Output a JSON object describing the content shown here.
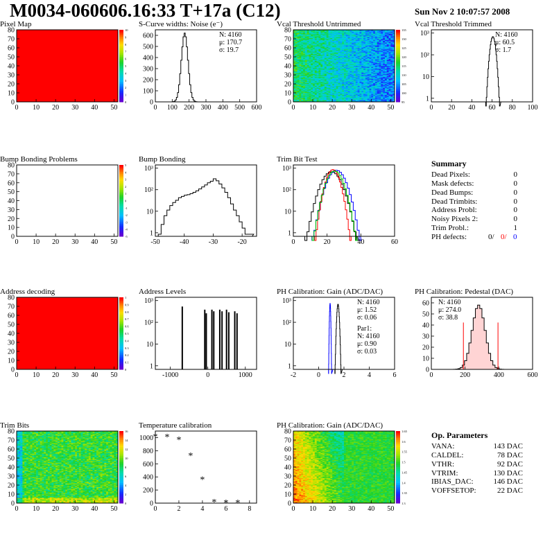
{
  "header": {
    "title": "M0034-060606.16:33 T+17a (C12)",
    "date": "Sun Nov  2 10:07:57 2008"
  },
  "colors": {
    "red": "#ff0000",
    "blue": "#0000ff",
    "green": "#00cc00",
    "black": "#000000"
  },
  "chart_data": [
    {
      "id": "pixel-map",
      "type": "heatmap",
      "title": "Pixel Map",
      "xticks": [
        "0",
        "10",
        "20",
        "30",
        "40",
        "50"
      ],
      "yticks": [
        "0",
        "10",
        "20",
        "30",
        "40",
        "50",
        "60",
        "70",
        "80"
      ],
      "xlim": [
        0,
        52
      ],
      "ylim": [
        0,
        80
      ],
      "fill": "uniform-red",
      "palette_ticks": [
        "10",
        "9",
        "8",
        "7",
        "6",
        "5",
        "4",
        "3",
        "2",
        "1",
        "0"
      ]
    },
    {
      "id": "scurve",
      "type": "histogram",
      "title": "S-Curve widths: Noise (e⁻)",
      "xticks": [
        "0",
        "100",
        "200",
        "300",
        "400",
        "500",
        "600"
      ],
      "xlim": [
        0,
        600
      ],
      "yticks": [
        "0",
        "100",
        "200",
        "300",
        "400",
        "500",
        "600"
      ],
      "ylim": [
        0,
        650
      ],
      "stats": [
        "N: 4160",
        "μ: 170.7",
        "σ: 19.7"
      ],
      "series": [
        {
          "mean": 170.7,
          "sigma": 19.7,
          "peak": 620
        }
      ]
    },
    {
      "id": "vcal-untrimmed",
      "type": "heatmap",
      "title": "Vcal Threshold Untrimmed",
      "xticks": [
        "0",
        "10",
        "20",
        "30",
        "40",
        "50"
      ],
      "yticks": [
        "0",
        "10",
        "20",
        "30",
        "40",
        "50",
        "60",
        "70",
        "80"
      ],
      "xlim": [
        0,
        52
      ],
      "ylim": [
        0,
        80
      ],
      "fill": "gradient-green-to-blue",
      "palette_ticks": [
        "135",
        "130",
        "125",
        "120",
        "115",
        "110",
        "105",
        "100",
        "95"
      ]
    },
    {
      "id": "vcal-trimmed",
      "type": "histogram",
      "title": "Vcal Threshold Trimmed",
      "xticks": [
        "0",
        "20",
        "40",
        "60",
        "80",
        "100"
      ],
      "xlim": [
        0,
        100
      ],
      "yticks": [
        "1",
        "10",
        "10²",
        "10³"
      ],
      "ylog": true,
      "stats": [
        "N: 4160",
        "μ: 60.5",
        "σ:  1.7"
      ],
      "series": [
        {
          "mean": 60.5,
          "sigma": 1.7,
          "peak": 1100
        }
      ]
    },
    {
      "id": "bump-problems",
      "type": "heatmap",
      "title": "Bump Bonding Problems",
      "xticks": [
        "0",
        "10",
        "20",
        "30",
        "40",
        "50"
      ],
      "yticks": [
        "0",
        "10",
        "20",
        "30",
        "40",
        "50",
        "60",
        "70",
        "80"
      ],
      "xlim": [
        0,
        52
      ],
      "ylim": [
        0,
        80
      ],
      "fill": "empty",
      "palette_ticks": [
        "5",
        "4",
        "3",
        "2",
        "1",
        "0",
        "-1",
        "-2",
        "-3",
        "-4",
        "-5"
      ]
    },
    {
      "id": "bump-bonding",
      "type": "histogram",
      "title": "Bump Bonding",
      "xticks": [
        "-50",
        "-40",
        "-30",
        "-20"
      ],
      "xlim": [
        -50,
        -15
      ],
      "yticks": [
        "1",
        "10",
        "10²",
        "10³"
      ],
      "ylog": true,
      "series": [
        {
          "x": [
            -49,
            -48,
            -47,
            -46,
            -45,
            -44,
            -43,
            -42,
            -41,
            -40,
            -39,
            -38,
            -37,
            -36,
            -35,
            -34,
            -33,
            -32,
            -31,
            -30,
            -29,
            -28,
            -27,
            -26,
            -25,
            -24,
            -23,
            -22,
            -21,
            -20,
            -19,
            -18,
            -17
          ],
          "y": [
            1,
            3,
            8,
            15,
            25,
            35,
            45,
            60,
            70,
            80,
            85,
            95,
            110,
            130,
            160,
            200,
            250,
            320,
            380,
            500,
            400,
            280,
            180,
            110,
            60,
            30,
            15,
            8,
            4,
            2,
            1,
            1,
            1
          ]
        }
      ]
    },
    {
      "id": "trim-bit-test",
      "type": "histogram",
      "title": "Trim Bit Test",
      "xticks": [
        "0",
        "20",
        "40",
        "60"
      ],
      "xlim": [
        0,
        60
      ],
      "yticks": [
        "1",
        "10",
        "10²",
        "10³"
      ],
      "ylog": true,
      "series": [
        {
          "color": "#000000",
          "mean": 22,
          "sigma": 3.8,
          "peak": 1100
        },
        {
          "color": "#0000ff",
          "mean": 25,
          "sigma": 3.5,
          "peak": 1300
        },
        {
          "color": "#ff0000",
          "mean": 23,
          "sigma": 2.6,
          "peak": 1400
        },
        {
          "color": "#00cc00",
          "mean": 24,
          "sigma": 3.2,
          "peak": 1200
        }
      ]
    },
    {
      "id": "summary",
      "type": "table",
      "title": "Summary",
      "rows": [
        {
          "label": "Dead Pixels:",
          "value": "0"
        },
        {
          "label": "Mask defects:",
          "value": "0"
        },
        {
          "label": "Dead Bumps:",
          "value": "0"
        },
        {
          "label": "Dead Trimbits:",
          "value": "0"
        },
        {
          "label": "Address Probl:",
          "value": "0"
        },
        {
          "label": "Noisy Pixels 2:",
          "value": "0"
        },
        {
          "label": "Trim Probl.:",
          "value": "1"
        }
      ],
      "ph_defects": {
        "label": "PH defects:",
        "values": [
          "0/",
          "0/",
          "0"
        ]
      }
    },
    {
      "id": "address-decoding",
      "type": "heatmap",
      "title": "Address decoding",
      "xticks": [
        "0",
        "10",
        "20",
        "30",
        "40",
        "50"
      ],
      "yticks": [
        "0",
        "10",
        "20",
        "30",
        "40",
        "50",
        "60",
        "70",
        "80"
      ],
      "xlim": [
        0,
        52
      ],
      "ylim": [
        0,
        80
      ],
      "fill": "uniform-red",
      "palette_ticks": [
        "1",
        "0.9",
        "0.8",
        "0.7",
        "0.6",
        "0.5",
        "0.4",
        "0.3",
        "0.2",
        "0.1",
        "0"
      ]
    },
    {
      "id": "address-levels",
      "type": "histogram",
      "title": "Address Levels",
      "xticks": [
        "-1000",
        "0",
        "1000"
      ],
      "xlim": [
        -1400,
        1300
      ],
      "yticks": [
        "1",
        "10",
        "10²",
        "10³"
      ],
      "ylog": true,
      "series": [
        {
          "x": [
            -700,
            -100,
            -60,
            90,
            140,
            300,
            360,
            480,
            540,
            700,
            760
          ],
          "y": [
            850,
            600,
            400,
            600,
            500,
            600,
            500,
            600,
            450,
            500,
            400
          ]
        }
      ]
    },
    {
      "id": "ph-gain",
      "type": "histogram",
      "title": "PH Calibration: Gain (ADC/DAC)",
      "xticks": [
        "-2",
        "0",
        "2",
        "4",
        "6"
      ],
      "xlim": [
        -2,
        6
      ],
      "yticks": [
        "1",
        "10",
        "10²",
        "10³"
      ],
      "ylog": true,
      "stats": [
        "N: 4160",
        "μ: 1.52",
        "σ: 0.06"
      ],
      "fit": [
        "Par1:",
        "N: 4160",
        "μ: 0.90",
        "σ: 0.03"
      ],
      "series": [
        {
          "color": "#000000",
          "mean": 1.52,
          "sigma": 0.06,
          "peak": 1100
        },
        {
          "color": "#0000ff",
          "mean": 0.9,
          "sigma": 0.03,
          "peak": 1200
        }
      ]
    },
    {
      "id": "ph-pedestal",
      "type": "histogram",
      "title": "PH Calibration: Pedestal (DAC)",
      "xticks": [
        "0",
        "200",
        "400",
        "600"
      ],
      "xlim": [
        0,
        600
      ],
      "yticks": [
        "0",
        "10",
        "20",
        "30",
        "40",
        "50",
        "60"
      ],
      "ylim": [
        0,
        65
      ],
      "stats": [
        "N: 4160",
        "μ: 274.0",
        "σ: 38.8"
      ],
      "series": [
        {
          "mean": 274.0,
          "sigma": 38.8,
          "peak": 58
        }
      ],
      "markers": [
        190,
        395
      ]
    },
    {
      "id": "trim-bits",
      "type": "heatmap",
      "title": "Trim Bits",
      "xticks": [
        "0",
        "10",
        "20",
        "30",
        "40",
        "50"
      ],
      "yticks": [
        "0",
        "10",
        "20",
        "30",
        "40",
        "50",
        "60",
        "70",
        "80"
      ],
      "xlim": [
        0,
        52
      ],
      "ylim": [
        0,
        80
      ],
      "fill": "noisy-green",
      "palette_ticks": [
        "16",
        "14",
        "12",
        "10",
        "8",
        "6",
        "4",
        "2",
        "0"
      ]
    },
    {
      "id": "temperature",
      "type": "scatter",
      "title": "Temperature calibration",
      "xticks": [
        "0",
        "2",
        "4",
        "6",
        "8"
      ],
      "xlim": [
        0,
        8.6
      ],
      "yticks": [
        "0",
        "200",
        "400",
        "600",
        "800",
        "1000"
      ],
      "ylim": [
        0,
        1100
      ],
      "series": [
        {
          "x": [
            0,
            1,
            2,
            3,
            4,
            5,
            6,
            7
          ],
          "y": [
            1020,
            1015,
            975,
            730,
            365,
            20,
            12,
            10
          ]
        }
      ]
    },
    {
      "id": "ph-gain-map",
      "type": "heatmap",
      "title": "PH Calibration: Gain (ADC/DAC)",
      "xticks": [
        "0",
        "10",
        "20",
        "30",
        "40",
        "50"
      ],
      "yticks": [
        "0",
        "10",
        "20",
        "30",
        "40",
        "50",
        "60",
        "70",
        "80"
      ],
      "xlim": [
        0,
        52
      ],
      "ylim": [
        0,
        80
      ],
      "fill": "gradient-red-to-green",
      "palette_ticks": [
        "1.65",
        "1.6",
        "1.55",
        "1.5",
        "1.45",
        "1.4",
        "1.35",
        "1.3"
      ]
    },
    {
      "id": "op-params",
      "type": "table",
      "title": "Op. Parameters",
      "rows": [
        {
          "label": "VANA:",
          "value": "143 DAC"
        },
        {
          "label": "CALDEL:",
          "value": "78 DAC"
        },
        {
          "label": "VTHR:",
          "value": "92 DAC"
        },
        {
          "label": "VTRIM:",
          "value": "130 DAC"
        },
        {
          "label": "IBIAS_DAC:",
          "value": "146 DAC"
        },
        {
          "label": "VOFFSETOP:",
          "value": "22 DAC"
        }
      ]
    }
  ]
}
